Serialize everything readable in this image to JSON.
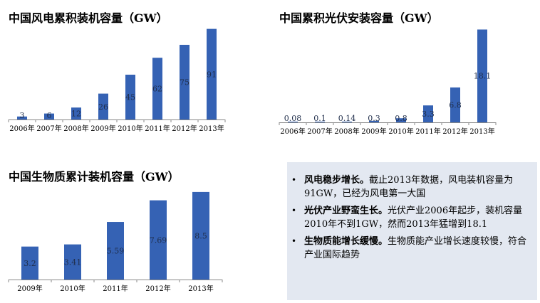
{
  "theme": {
    "bar_color": "#3562b4",
    "axis_color": "#888888",
    "label_color": "#1f2d4a",
    "notes_bg": "#e3e8f1"
  },
  "chart_data": [
    {
      "type": "bar",
      "title": "中国风电累积装机容量（GW）",
      "categories": [
        "2006年",
        "2007年",
        "2008年",
        "2009年",
        "2010年",
        "2011年",
        "2012年",
        "2013年"
      ],
      "values": [
        3,
        6,
        12,
        26,
        45,
        62,
        75,
        91
      ],
      "labels": [
        "3",
        "6",
        "12",
        "26",
        "45",
        "62",
        "75",
        "91"
      ],
      "ylim": [
        0,
        95
      ],
      "legend": "none",
      "grid": false
    },
    {
      "type": "bar",
      "title": "中国累积光伏安装容量（GW）",
      "categories": [
        "2006年",
        "2007年",
        "2008年",
        "2009年",
        "2010年",
        "2011年",
        "2012年",
        "2013年"
      ],
      "values": [
        0.08,
        0.1,
        0.14,
        0.3,
        0.8,
        3.3,
        6.8,
        18.1
      ],
      "labels": [
        "0.08",
        "0.1",
        "0.14",
        "0.3",
        "0.8",
        "3.3",
        "6.8",
        "18.1"
      ],
      "ylim": [
        0,
        19
      ],
      "legend": "none",
      "grid": false
    },
    {
      "type": "bar",
      "title": "中国生物质累计装机容量（GW）",
      "categories": [
        "2009年",
        "2010年",
        "2011年",
        "2012年",
        "2013年"
      ],
      "values": [
        3.2,
        3.41,
        5.59,
        7.69,
        8.5
      ],
      "labels": [
        "3.2",
        "3.41",
        "5.59",
        "7.69",
        "8.5"
      ],
      "ylim": [
        0,
        8.7
      ],
      "legend": "none",
      "grid": false
    }
  ],
  "notes": [
    {
      "head": "风电稳步增长。",
      "body": "截止2013年数据，风电装机容量为91GW，已经为风电第一大国"
    },
    {
      "head": "光伏产业野蛮生长。",
      "body": "光伏产业2006年起步，装机容量2010年不到1GW，然而2013年猛增到18.1"
    },
    {
      "head": "生物质能增长缓慢。",
      "body": "生物质能产业增长速度较慢，符合产业国际趋势"
    }
  ],
  "bullet_glyph": "•"
}
